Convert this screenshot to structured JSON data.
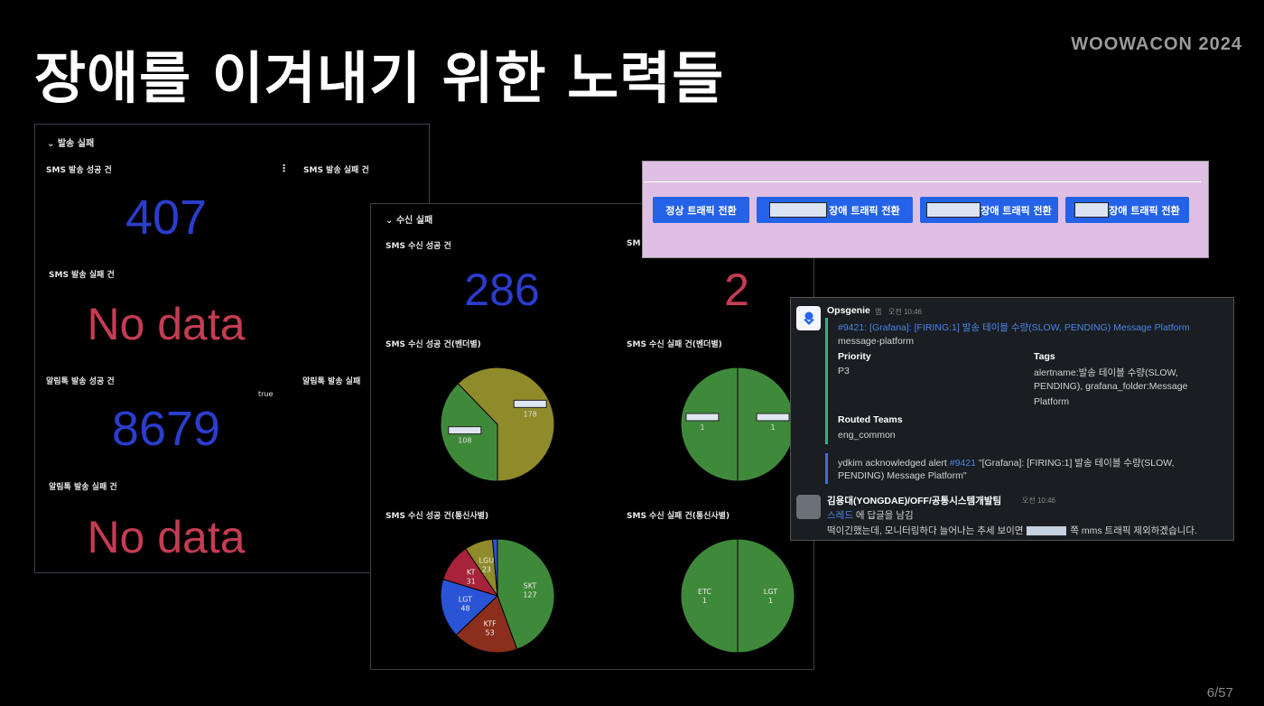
{
  "slide": {
    "title": "장애를 이겨내기 위한 노력들",
    "brand": "WOOWACON 2024",
    "page": "6/57"
  },
  "send_panel": {
    "section": "⌄ 발송 실패",
    "sms_success_label": "SMS 발송 성공 건",
    "sms_success_value": "407",
    "sms_fail_label_right": "SMS 발송 실패 건",
    "sms_fail_label": "SMS 발송 실패 건",
    "sms_fail_value": "No data",
    "alimtalk_success_label": "알림톡 발송 성공 건",
    "alimtalk_success_value": "8679",
    "alimtalk_fail_label_right": "알림톡 발송 실패",
    "true_text": "true",
    "alimtalk_fail_label": "알림톡 발송 실패 건",
    "alimtalk_fail_value": "No data",
    "menu_glyph": "⋮"
  },
  "receive_panel": {
    "section": "⌄ 수신 실패",
    "sms_success_label": "SMS 수신 성공 건",
    "sms_success_value": "286",
    "sms_fail_label": "SM",
    "sms_fail_value": "2",
    "vendor_success_label": "SMS 수신 성공 건(벤더별)",
    "vendor_fail_label": "SMS 수신 실패 건(벤더별)",
    "carrier_success_label": "SMS 수신 성공 건(통신사별)",
    "carrier_fail_label": "SMS 수신 실패 건(통신사별)"
  },
  "chart_data": [
    {
      "type": "pie",
      "title": "SMS 수신 성공 건(벤더별)",
      "categories": [
        "",
        ""
      ],
      "values": [
        108,
        178
      ],
      "colors": [
        "#3f8a3a",
        "#8f8a2a"
      ]
    },
    {
      "type": "pie",
      "title": "SMS 수신 실패 건(벤더별)",
      "categories": [
        "",
        ""
      ],
      "values": [
        1,
        1
      ],
      "colors": [
        "#3f8a3a",
        "#3f8a3a"
      ]
    },
    {
      "type": "pie",
      "title": "SMS 수신 성공 건(통신사별)",
      "categories": [
        "SKT",
        "KTF",
        "LGT",
        "KT",
        "LGU",
        ""
      ],
      "values": [
        127,
        53,
        48,
        31,
        23,
        4
      ],
      "colors": [
        "#3f8a3a",
        "#8c2e1c",
        "#2a54d6",
        "#a6233a",
        "#8f8a2a",
        "#2a54d6"
      ]
    },
    {
      "type": "pie",
      "title": "SMS 수신 실패 건(통신사별)",
      "categories": [
        "LGT",
        "ETC"
      ],
      "values": [
        1,
        1
      ],
      "colors": [
        "#3f8a3a",
        "#3f8a3a"
      ]
    }
  ],
  "traffic_ui": {
    "buttons": [
      "정상 트래픽 전환",
      "장애 트래픽 전환",
      "장애 트래픽 전환",
      "장애 트래픽 전환"
    ]
  },
  "slack": {
    "app_name": "Opsgenie",
    "app_badge": "앱",
    "time1": "오전 10:46",
    "alert_link": "#9421: [Grafana]: [FIRING:1] 발송 테이블 수량(SLOW, PENDING) Message Platform",
    "team_slug": "message-platform",
    "priority_label": "Priority",
    "priority_value": "P3",
    "tags_label": "Tags",
    "tags_line1": "alertname:발송 테이블 수량(SLOW,",
    "tags_line2": "PENDING), grafana_folder:Message",
    "tags_line3": "Platform",
    "routed_label": "Routed Teams",
    "routed_value": "eng_common",
    "ack_prefix": "ydkim acknowledged alert",
    "ack_link": "#9421",
    "ack_rest": "\"[Grafana]: [FIRING:1] 발송 테이블 수량(SLOW,",
    "ack_line2": "PENDING) Message Platform\"",
    "user_name": "김용대(YONGDAE)/OFF/공통시스템개발팀",
    "time2": "오전 10:46",
    "thread_link": "스레드",
    "thread_rest": "에 답글을 남김",
    "message_pre": "떡이긴했는데, 모니터링하다 늘어나는 추세 보이면",
    "message_post": "쪽 mms 트래픽 제외하겠습니다."
  }
}
